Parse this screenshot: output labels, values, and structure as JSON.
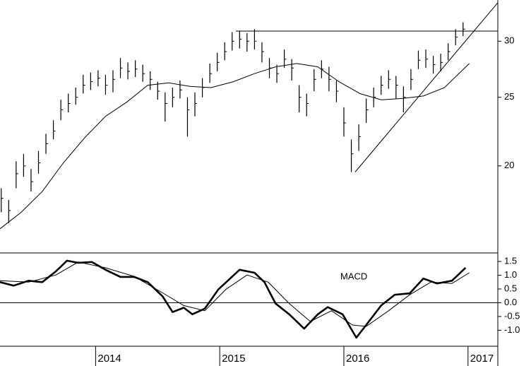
{
  "chart_data": [
    {
      "type": "ohlc",
      "log_scale": true,
      "color": "#000000",
      "xlim": [
        2013.23,
        2017.24
      ],
      "ylim": [
        15.07,
        34.3
      ],
      "yticks": [
        20,
        25,
        30
      ],
      "x": [
        2013.24,
        2013.3,
        2013.36,
        2013.42,
        2013.48,
        2013.54,
        2013.6,
        2013.66,
        2013.72,
        2013.78,
        2013.84,
        2013.9,
        2013.96,
        2014.02,
        2014.08,
        2014.14,
        2014.2,
        2014.26,
        2014.32,
        2014.38,
        2014.44,
        2014.5,
        2014.56,
        2014.62,
        2014.68,
        2014.74,
        2014.8,
        2014.86,
        2014.92,
        2014.98,
        2015.04,
        2015.1,
        2015.16,
        2015.22,
        2015.28,
        2015.34,
        2015.4,
        2015.46,
        2015.52,
        2015.58,
        2015.64,
        2015.7,
        2015.76,
        2015.82,
        2015.88,
        2015.94,
        2016.0,
        2016.06,
        2016.12,
        2016.18,
        2016.24,
        2016.3,
        2016.36,
        2016.42,
        2016.48,
        2016.54,
        2016.6,
        2016.66,
        2016.72,
        2016.78,
        2016.84,
        2016.9,
        2016.96
      ],
      "high": [
        18.6,
        17.9,
        20.3,
        20.8,
        19.8,
        21.0,
        22.2,
        23.2,
        24.8,
        25.3,
        25.8,
        26.9,
        27.1,
        27.3,
        26.9,
        27.3,
        28.4,
        28.0,
        28.2,
        27.8,
        27.2,
        26.3,
        25.4,
        25.8,
        26.4,
        25.0,
        25.4,
        26.6,
        27.9,
        28.9,
        29.9,
        30.9,
        31.0,
        30.8,
        31.2,
        29.9,
        28.4,
        27.8,
        29.2,
        28.3,
        26.0,
        25.3,
        27.4,
        28.2,
        27.6,
        26.4,
        24.2,
        21.8,
        22.9,
        24.9,
        25.8,
        26.8,
        27.3,
        26.8,
        25.9,
        27.4,
        29.1,
        29.2,
        28.6,
        28.8,
        29.8,
        31.2,
        31.9
      ],
      "low": [
        17.2,
        16.6,
        18.6,
        19.3,
        18.4,
        19.5,
        20.8,
        21.8,
        23.2,
        23.8,
        24.4,
        25.3,
        25.6,
        25.9,
        25.2,
        25.4,
        26.6,
        26.5,
        26.7,
        26.3,
        25.6,
        24.8,
        23.1,
        24.2,
        24.9,
        22.0,
        23.5,
        25.0,
        26.2,
        27.2,
        28.2,
        29.1,
        29.3,
        29.0,
        29.2,
        28.0,
        26.6,
        26.2,
        27.5,
        26.4,
        23.8,
        23.5,
        25.5,
        26.6,
        25.5,
        24.6,
        22.0,
        19.6,
        21.0,
        23.0,
        24.2,
        25.2,
        25.7,
        24.9,
        23.8,
        25.6,
        27.4,
        27.5,
        27.0,
        27.2,
        28.2,
        29.6,
        30.5
      ],
      "close": [
        18.0,
        17.3,
        19.5,
        20.0,
        19.0,
        20.2,
        21.5,
        22.4,
        24.0,
        24.5,
        25.0,
        26.0,
        26.3,
        26.6,
        26.0,
        26.5,
        27.5,
        27.2,
        27.4,
        27.0,
        26.5,
        25.5,
        24.5,
        25.0,
        25.6,
        24.0,
        24.5,
        25.8,
        27.0,
        28.0,
        29.0,
        30.0,
        30.2,
        30.0,
        30.0,
        29.0,
        27.5,
        27.0,
        28.3,
        27.5,
        25.0,
        24.5,
        26.5,
        27.4,
        26.5,
        25.5,
        23.0,
        20.8,
        22.0,
        24.0,
        25.0,
        26.0,
        26.5,
        26.0,
        25.0,
        26.5,
        28.2,
        28.3,
        27.8,
        28.0,
        29.0,
        30.4,
        31.2
      ],
      "overlays": [
        {
          "x": [
            2013.23,
            2013.4,
            2013.57,
            2013.74,
            2013.91,
            2014.08,
            2014.25,
            2014.42,
            2014.59,
            2014.76,
            2014.93,
            2015.11,
            2015.28,
            2015.45,
            2015.62,
            2015.79,
            2015.96,
            2016.13,
            2016.3,
            2016.47,
            2016.64,
            2016.81,
            2017.01
          ],
          "values": [
            16.3,
            17.2,
            18.4,
            20.2,
            21.9,
            23.5,
            24.6,
            26.0,
            26.2,
            25.9,
            25.8,
            26.3,
            27.0,
            27.6,
            27.9,
            27.6,
            26.3,
            25.3,
            24.8,
            24.9,
            25.1,
            25.8,
            27.9
          ]
        },
        {
          "x": [
            2015.13,
            2017.24
          ],
          "values": [
            31.0,
            31.0
          ]
        },
        {
          "x": [
            2016.09,
            2017.24
          ],
          "values": [
            19.6,
            34.0
          ]
        }
      ]
    },
    {
      "type": "line",
      "label": "MACD",
      "hline": 0,
      "xlim": [
        2013.23,
        2017.24
      ],
      "xticks": [
        2014,
        2015,
        2016,
        2017
      ],
      "ylim": [
        -1.58,
        1.81
      ],
      "yticks": [
        1.5,
        {
          "value": 1,
          "label": "1.0"
        },
        0.5,
        {
          "value": 0,
          "label": "0.0"
        },
        -0.5,
        {
          "value": -1,
          "label": "-1.0"
        }
      ],
      "series": [
        {
          "color": "#000000",
          "width": 2.6,
          "x": [
            2013.23,
            2013.34,
            2013.46,
            2013.57,
            2013.68,
            2013.77,
            2013.86,
            2013.97,
            2014.08,
            2014.2,
            2014.31,
            2014.42,
            2014.54,
            2014.62,
            2014.71,
            2014.78,
            2014.88,
            2014.99,
            2015.16,
            2015.28,
            2015.36,
            2015.45,
            2015.56,
            2015.68,
            2015.79,
            2015.87,
            2015.99,
            2016.1,
            2016.18,
            2016.3,
            2016.41,
            2016.53,
            2016.64,
            2016.75,
            2016.87,
            2016.98
          ],
          "values": [
            0.75,
            0.62,
            0.8,
            0.75,
            1.14,
            1.53,
            1.45,
            1.48,
            1.2,
            0.94,
            0.94,
            0.75,
            0.23,
            -0.34,
            -0.18,
            -0.42,
            -0.21,
            0.49,
            1.2,
            1.09,
            0.75,
            -0.03,
            -0.42,
            -0.94,
            -0.42,
            -0.16,
            -0.42,
            -1.27,
            -0.81,
            -0.1,
            0.29,
            0.34,
            0.88,
            0.7,
            0.8,
            1.27
          ]
        },
        {
          "color": "#000000",
          "width": 1,
          "x": [
            2013.23,
            2013.46,
            2013.68,
            2013.86,
            2014.08,
            2014.31,
            2014.54,
            2014.71,
            2014.88,
            2015.05,
            2015.22,
            2015.39,
            2015.56,
            2015.73,
            2015.9,
            2016.07,
            2016.18,
            2016.36,
            2016.53,
            2016.7,
            2016.87,
            2017.01
          ],
          "values": [
            0.8,
            0.75,
            1.01,
            1.48,
            1.27,
            0.96,
            0.36,
            -0.1,
            -0.29,
            0.49,
            1.01,
            0.75,
            -0.03,
            -0.68,
            -0.29,
            -0.81,
            -0.86,
            -0.29,
            0.29,
            0.75,
            0.7,
            1.09
          ]
        }
      ]
    }
  ]
}
